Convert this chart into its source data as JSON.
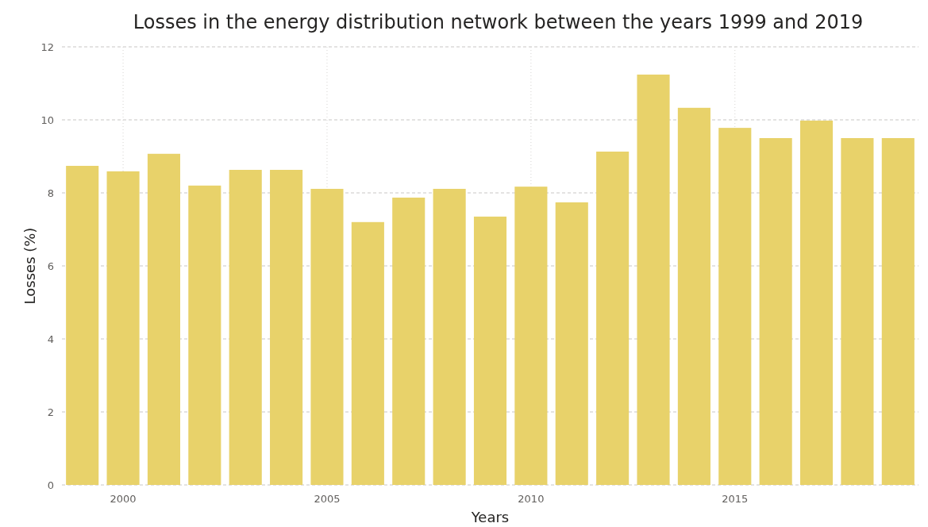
{
  "chart_data": {
    "type": "bar",
    "title": "Losses in the energy distribution network between the years 1999 and 2019",
    "xlabel": "Years",
    "ylabel": "Losses (%)",
    "x": [
      1999,
      2000,
      2001,
      2002,
      2003,
      2004,
      2005,
      2006,
      2007,
      2008,
      2009,
      2010,
      2011,
      2012,
      2013,
      2014,
      2015,
      2016,
      2017,
      2018,
      2019
    ],
    "values": [
      8.74,
      8.59,
      9.07,
      8.2,
      8.63,
      8.63,
      8.11,
      7.2,
      7.87,
      8.11,
      7.35,
      8.17,
      7.74,
      9.13,
      11.24,
      10.33,
      9.78,
      9.5,
      9.98,
      9.5,
      9.5
    ],
    "color": "#e8d26a",
    "xlim": [
      1998.5,
      2019.5
    ],
    "xticks": [
      2000,
      2005,
      2010,
      2015
    ],
    "ylim": [
      0,
      12
    ],
    "yticks": [
      0,
      2,
      4,
      6,
      8,
      10,
      12
    ],
    "grid": true
  }
}
